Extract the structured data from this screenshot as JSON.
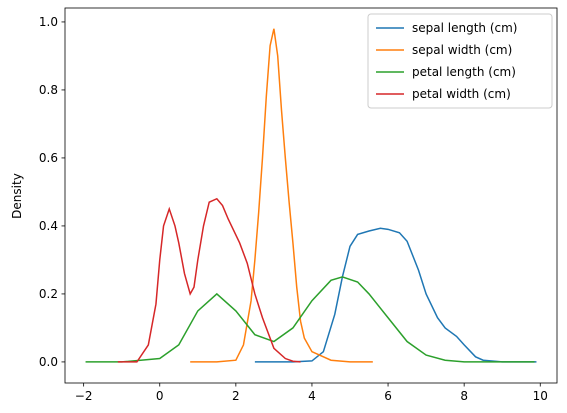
{
  "chart_data": {
    "type": "line",
    "y_label": "Density",
    "xlim": [
      -2.49,
      10.44
    ],
    "ylim": [
      -0.062,
      1.041
    ],
    "xticks": [
      {
        "value": -2,
        "label": "−2"
      },
      0,
      2,
      4,
      6,
      8,
      10
    ],
    "yticks": [
      {
        "value": 0,
        "label": "0.0"
      },
      {
        "value": 0.2,
        "label": "0.2"
      },
      {
        "value": 0.4,
        "label": "0.4"
      },
      {
        "value": 0.6,
        "label": "0.6"
      },
      {
        "value": 0.8,
        "label": "0.8"
      },
      {
        "value": 1,
        "label": "1.0"
      }
    ],
    "legend": "upper right",
    "series": [
      {
        "name": "sepal length (cm)",
        "color": "#1f77b4",
        "x": [
          2.5,
          3,
          3.5,
          4,
          4.3,
          4.6,
          4.8,
          5,
          5.2,
          5.5,
          5.8,
          6,
          6.3,
          6.5,
          6.8,
          7,
          7.3,
          7.5,
          7.8,
          8,
          8.3,
          8.5,
          9,
          9.9
        ],
        "values": [
          0,
          0,
          0,
          0.003,
          0.03,
          0.14,
          0.25,
          0.34,
          0.375,
          0.385,
          0.393,
          0.39,
          0.38,
          0.355,
          0.27,
          0.2,
          0.13,
          0.1,
          0.075,
          0.05,
          0.015,
          0.005,
          0,
          0
        ]
      },
      {
        "name": "sepal width (cm)",
        "color": "#ff7f0e",
        "x": [
          0.8,
          1.5,
          2,
          2.2,
          2.4,
          2.5,
          2.6,
          2.7,
          2.8,
          2.9,
          3,
          3.1,
          3.2,
          3.3,
          3.4,
          3.5,
          3.6,
          3.7,
          3.8,
          4,
          4.5,
          5,
          5.6
        ],
        "values": [
          0,
          0,
          0.005,
          0.05,
          0.18,
          0.3,
          0.44,
          0.6,
          0.78,
          0.93,
          0.98,
          0.9,
          0.74,
          0.6,
          0.47,
          0.35,
          0.22,
          0.12,
          0.07,
          0.03,
          0.005,
          0,
          0
        ]
      },
      {
        "name": "petal length (cm)",
        "color": "#2ca02c",
        "x": [
          -1.95,
          -1,
          0,
          0.5,
          1,
          1.5,
          2,
          2.5,
          3,
          3.5,
          4,
          4.5,
          4.8,
          5.2,
          5.5,
          6,
          6.5,
          7,
          7.5,
          8,
          9.85
        ],
        "values": [
          0,
          0,
          0.01,
          0.05,
          0.15,
          0.2,
          0.15,
          0.08,
          0.06,
          0.1,
          0.18,
          0.24,
          0.25,
          0.235,
          0.2,
          0.13,
          0.06,
          0.02,
          0.005,
          0,
          0
        ]
      },
      {
        "name": "petal width (cm)",
        "color": "#d62728",
        "x": [
          -1.1,
          -0.6,
          -0.3,
          -0.1,
          0,
          0.1,
          0.25,
          0.4,
          0.5,
          0.65,
          0.8,
          0.9,
          1,
          1.15,
          1.3,
          1.5,
          1.65,
          1.8,
          2.1,
          2.3,
          2.5,
          2.7,
          3,
          3.3,
          3.5,
          3.7
        ],
        "values": [
          0,
          0,
          0.05,
          0.17,
          0.3,
          0.4,
          0.45,
          0.4,
          0.35,
          0.26,
          0.2,
          0.22,
          0.3,
          0.4,
          0.47,
          0.48,
          0.46,
          0.42,
          0.35,
          0.29,
          0.2,
          0.13,
          0.04,
          0.01,
          0.002,
          0
        ]
      }
    ]
  }
}
